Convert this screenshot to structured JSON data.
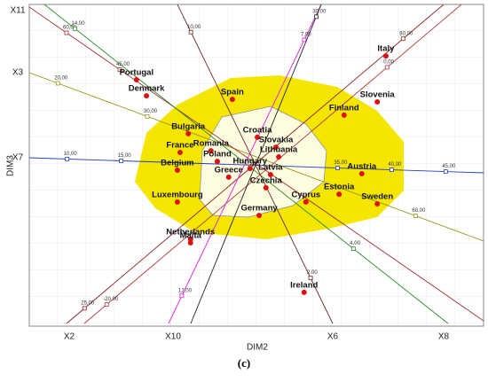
{
  "chart_data": {
    "type": "scatter",
    "xlabel": "DIM2",
    "ylabel": "DIM3",
    "caption": "(c)",
    "xlim": [
      0,
      100
    ],
    "ylim": [
      0,
      100
    ],
    "color": "#e01010",
    "categories": [
      "Portugal",
      "Denmark",
      "Italy",
      "Spain",
      "Slovenia",
      "Finland",
      "Bulgaria",
      "Croatia",
      "Slovakia",
      "Lithuania",
      "France",
      "Romania",
      "Poland",
      "Hungary",
      "Latvia",
      "Belgium",
      "Austria",
      "Greece",
      "Czechia",
      "Estonia",
      "Cyprus",
      "Sweden",
      "Luxembourg",
      "Germany",
      "Netherlands",
      "Malta",
      "Ireland"
    ],
    "x": [
      23.6,
      25.8,
      78.5,
      44.7,
      76.6,
      69.3,
      35.0,
      50.2,
      54.3,
      54.9,
      33.2,
      40.0,
      41.4,
      48.6,
      53.1,
      32.6,
      73.2,
      43.9,
      52.1,
      68.2,
      60.9,
      76.6,
      32.6,
      50.6,
      35.5,
      35.5,
      60.5
    ],
    "y": [
      76.6,
      71.6,
      84.0,
      70.5,
      69.7,
      65.6,
      59.8,
      58.7,
      55.6,
      52.6,
      54.0,
      54.5,
      51.2,
      49.0,
      47.1,
      48.5,
      47.4,
      46.3,
      43.0,
      41.0,
      38.6,
      38.0,
      38.6,
      34.4,
      27.0,
      25.9,
      10.5
    ],
    "biplot_axes": [
      {
        "name": "X7",
        "color": "#1f3fbf",
        "lim": [
          6.5,
          48.5
        ],
        "ticks": [
          {
            "value": 10,
            "label": "10,00"
          },
          {
            "value": 15,
            "label": "15,00"
          },
          {
            "value": 35,
            "label": "35,00"
          },
          {
            "value": 40,
            "label": "40,00"
          },
          {
            "value": 45,
            "label": "45,00"
          }
        ]
      },
      {
        "name": "X3",
        "color": "#9a9a20",
        "lim": [
          16.8,
          67.6
        ],
        "ticks": [
          {
            "value": 20,
            "label": "20,00"
          },
          {
            "value": 30,
            "label": "30,00"
          },
          {
            "value": 60,
            "label": "60,00"
          }
        ]
      },
      {
        "name": "X11",
        "color": "#a03030",
        "lim": [
          70.5,
          -57.5
        ],
        "ticks": [
          {
            "value": 60,
            "label": "60,00"
          },
          {
            "value": 45,
            "label": "45,00"
          }
        ]
      },
      {
        "name": "X8",
        "color": "#2a8a2a",
        "lim": [
          15.1,
          0.6
        ],
        "ticks": [
          {
            "value": 14,
            "label": "14,00"
          },
          {
            "value": 4,
            "label": "4,00"
          }
        ]
      },
      {
        "name": "X2",
        "color": "#8b2020",
        "lim": [
          21.9,
          87.0
        ],
        "ticks": [
          {
            "value": 25,
            "label": "25,00"
          },
          {
            "value": 80,
            "label": "80,00"
          }
        ]
      },
      {
        "name": null,
        "color": "#b03a3a",
        "lim": [
          -21.6,
          5.3
        ],
        "ticks": [
          {
            "value": -20,
            "label": "-20,00"
          },
          {
            "value": 0,
            "label": "0,00"
          }
        ]
      },
      {
        "name": "X10",
        "color": "#e020e0",
        "lim": [
          12.54,
          6.31
        ],
        "ticks": [
          {
            "value": 12,
            "label": "12,00"
          },
          {
            "value": 7,
            "label": "7,00"
          }
        ]
      },
      {
        "name": "X6",
        "color": "#6a2a2a",
        "lim": [
          10.9,
          0.52
        ],
        "ticks": [
          {
            "value": 10,
            "label": "10,00"
          },
          {
            "value": 2,
            "label": "2,00"
          }
        ]
      },
      {
        "name": null,
        "color": "#222222",
        "lim": [
          5,
          31
        ],
        "ticks": [
          {
            "value": 30,
            "label": "30,00"
          }
        ]
      }
    ]
  }
}
